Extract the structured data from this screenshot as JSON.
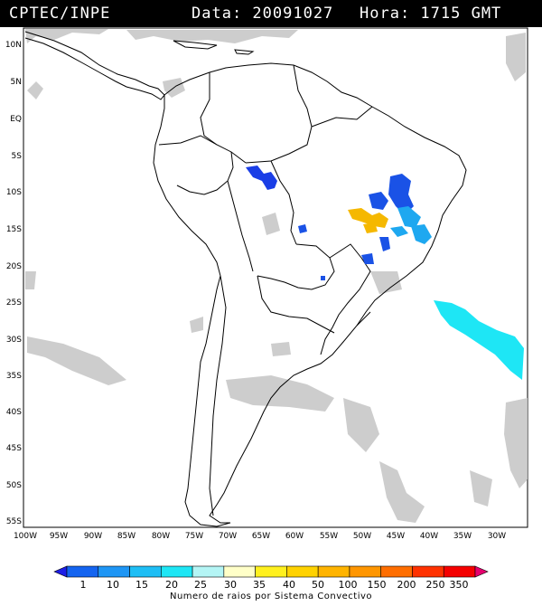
{
  "header": {
    "org": "CPTEC/INPE",
    "date_text": "Data: 20091027",
    "time_text": "Hora: 1715 GMT"
  },
  "map": {
    "lat_labels": [
      "10N",
      "5N",
      "EQ",
      "5S",
      "10S",
      "15S",
      "20S",
      "25S",
      "30S",
      "35S",
      "40S",
      "45S",
      "50S",
      "55S"
    ],
    "lon_labels": [
      "100W",
      "95W",
      "90W",
      "85W",
      "80W",
      "75W",
      "70W",
      "65W",
      "60W",
      "55W",
      "50W",
      "45W",
      "40W",
      "35W",
      "30W"
    ],
    "colors": {
      "cloud_gray": "#c8c8c8",
      "border": "#000000",
      "lightning_blue": "#1a52e6",
      "lightning_lightblue": "#1ea8f0",
      "lightning_cyan": "#1ee6f5",
      "lightning_yellow": "#f5b800"
    }
  },
  "legend": {
    "values": [
      "1",
      "10",
      "15",
      "20",
      "25",
      "30",
      "35",
      "40",
      "50",
      "100",
      "150",
      "200",
      "250",
      "350"
    ],
    "caption": "Numero de raios por Sistema Convectivo",
    "colors": [
      "#1e1ee6",
      "#1464f0",
      "#1e96f5",
      "#1ebef5",
      "#1ee6f5",
      "#b4f5f5",
      "#ffffc8",
      "#fff01e",
      "#ffd200",
      "#ffb400",
      "#ff9600",
      "#ff6e00",
      "#ff3200",
      "#f50000",
      "#e6006e"
    ]
  }
}
